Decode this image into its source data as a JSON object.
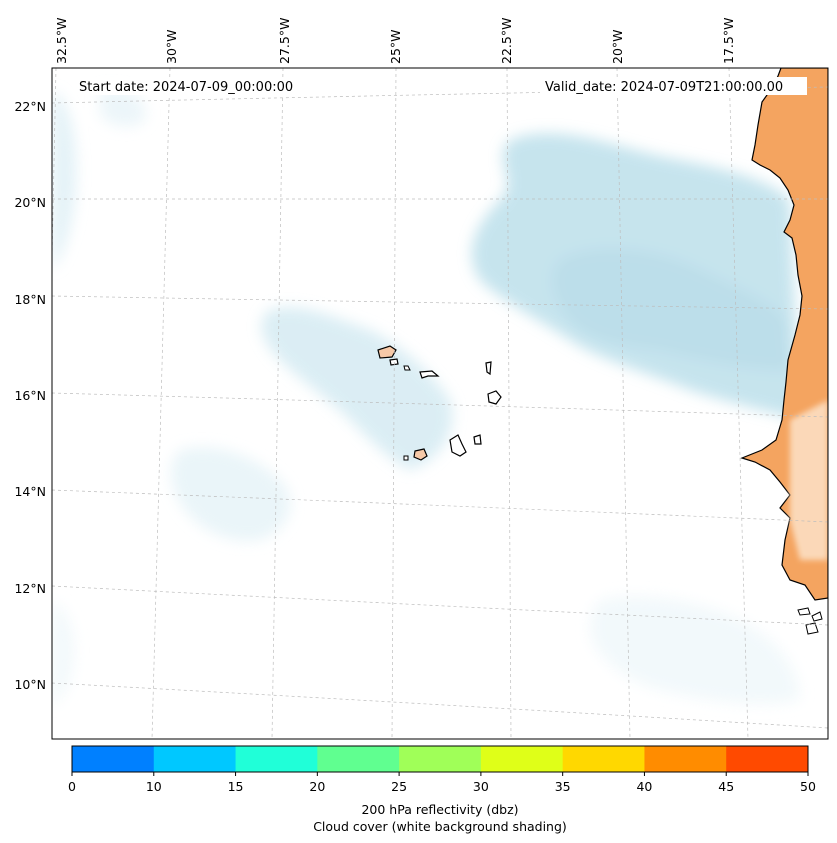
{
  "map": {
    "start_date_text": "Start date: 2024-07-09_00:00:00",
    "valid_date_text": "Valid_date: 2024-07-09T21:00:00.00",
    "lon_labels": [
      "32.5°W",
      "30°W",
      "27.5°W",
      "25°W",
      "22.5°W",
      "20°W",
      "17.5°W"
    ],
    "lat_labels": [
      "22°N",
      "20°N",
      "18°N",
      "16°N",
      "14°N",
      "12°N",
      "10°N"
    ],
    "gridlines": true,
    "land_color": "#f4a460",
    "cloud_color": "#add8e6"
  },
  "colorbar": {
    "ticks": [
      "0",
      "10",
      "15",
      "20",
      "25",
      "30",
      "35",
      "40",
      "45",
      "50"
    ],
    "colors": [
      "#0080ff",
      "#00c8ff",
      "#20ffd8",
      "#60ff90",
      "#a0ff58",
      "#dfff18",
      "#ffd800",
      "#ff8c00",
      "#ff4a00"
    ],
    "label_line1": "200 hPa reflectivity (dbz)",
    "label_line2": "Cloud cover (white background shading)"
  },
  "chart_data": {
    "type": "heatmap",
    "title": "",
    "variable": "200 hPa reflectivity (dbz)",
    "background_shading": "Cloud cover",
    "levels": [
      0,
      10,
      15,
      20,
      25,
      30,
      35,
      40,
      45,
      50
    ],
    "lon_ticks": [
      "32.5°W",
      "30°W",
      "27.5°W",
      "25°W",
      "22.5°W",
      "20°W",
      "17.5°W"
    ],
    "lat_ticks": [
      "22°N",
      "20°N",
      "18°N",
      "16°N",
      "14°N",
      "12°N",
      "10°N"
    ],
    "start_date": "2024-07-09_00:00:00",
    "valid_date": "2024-07-09T21:00:00.00"
  }
}
